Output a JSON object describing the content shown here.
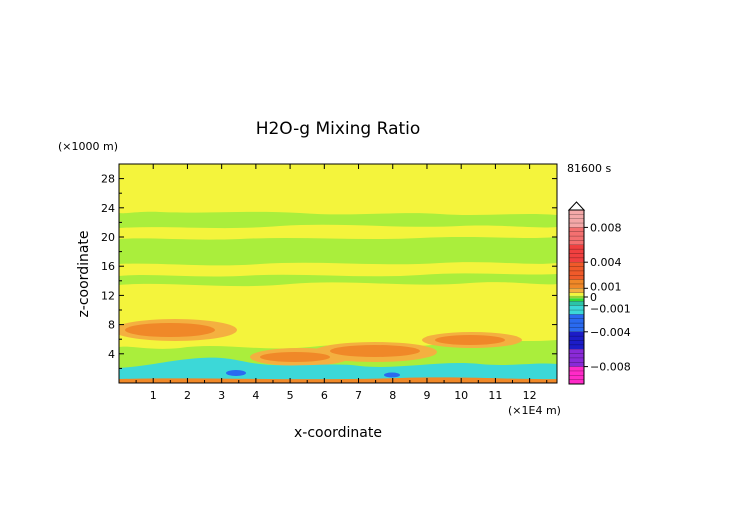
{
  "chart_data": {
    "type": "heatmap",
    "title": "H2O-g Mixing Ratio",
    "xlabel": "x-coordinate",
    "ylabel": "z-coordinate",
    "x_unit": "(×1E4 m)",
    "y_unit": "(×1000 m)",
    "time_label": "81600 s",
    "xlim": [
      0,
      12.8
    ],
    "ylim": [
      0,
      30
    ],
    "x_ticks": [
      "1",
      "2",
      "3",
      "4",
      "5",
      "6",
      "7",
      "8",
      "9",
      "10",
      "11",
      "12"
    ],
    "y_ticks": [
      "4",
      "8",
      "12",
      "16",
      "20",
      "24",
      "28"
    ],
    "colorbar": {
      "min": -0.01,
      "max": 0.01,
      "labels": [
        "0.008",
        "0.004",
        "0.001",
        "0",
        "−0.001",
        "−0.004",
        "−0.008"
      ],
      "label_values": [
        0.008,
        0.004,
        0.001,
        0,
        -0.001,
        -0.004,
        -0.008
      ],
      "colors": {
        "top_pink": "#f4a8a8",
        "red": "#f04040",
        "orange": "#f08828",
        "light_orange": "#f4b040",
        "yellow": "#f4f43c",
        "yellow_green": "#aaee3c",
        "green": "#34d934",
        "cyan": "#3cd8d8",
        "blue": "#2a6af0",
        "dark_blue": "#1c1cc8",
        "purple": "#8a2ad8",
        "magenta": "#ff2ac8"
      }
    },
    "field_regions": [
      {
        "level": "yellow_green",
        "x": [
          0,
          12.8
        ],
        "z": [
          0,
          23.5
        ]
      },
      {
        "level": "yellow",
        "x": [
          0,
          12.8
        ],
        "z": [
          23.5,
          30
        ]
      },
      {
        "level": "yellow",
        "x": [
          0,
          12.8
        ],
        "z": [
          20,
          21.5
        ]
      },
      {
        "level": "yellow",
        "x": [
          0,
          12.8
        ],
        "z": [
          15,
          17
        ]
      },
      {
        "level": "yellow",
        "x": [
          0,
          12.8
        ],
        "z": [
          7,
          13
        ]
      },
      {
        "level": "orange",
        "x": [
          0.5,
          3
        ],
        "z": [
          7.2,
          8.8
        ]
      },
      {
        "level": "orange",
        "x": [
          3.8,
          5.8
        ],
        "z": [
          3.2,
          4.8
        ]
      },
      {
        "level": "orange",
        "x": [
          5.8,
          8.8
        ],
        "z": [
          4,
          5.6
        ]
      },
      {
        "level": "orange",
        "x": [
          9.5,
          11.2
        ],
        "z": [
          5.5,
          6.8
        ]
      },
      {
        "level": "cyan",
        "x": [
          0,
          12.8
        ],
        "z": [
          0.3,
          2.8
        ]
      },
      {
        "level": "orange",
        "x": [
          0,
          12.8
        ],
        "z": [
          0,
          0.4
        ]
      }
    ]
  }
}
